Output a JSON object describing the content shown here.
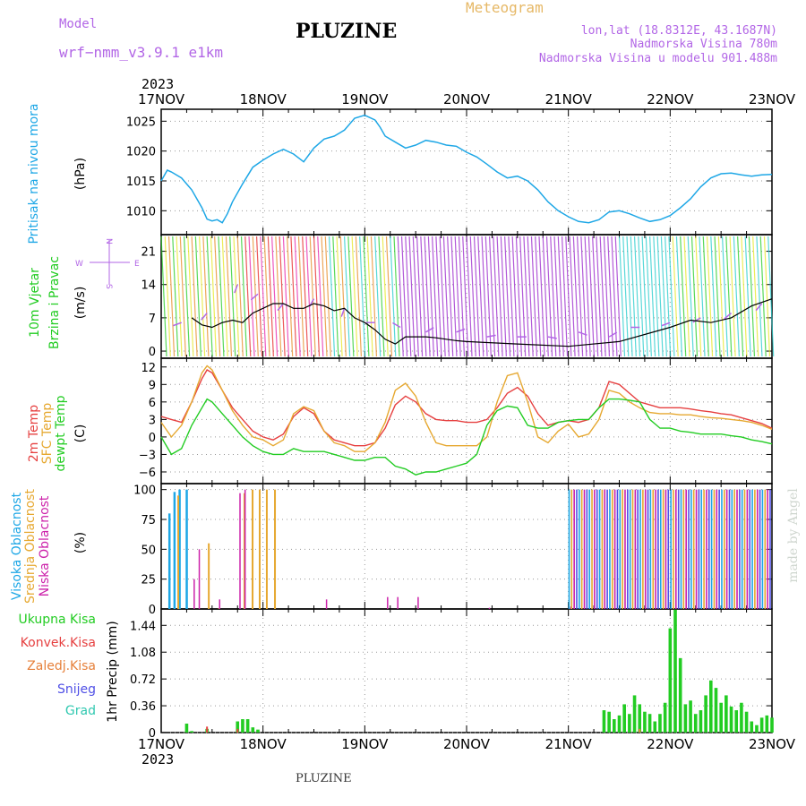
{
  "header": {
    "model_label": "Model",
    "model_name": "wrf−nmm_v3.9.1  e1km",
    "station_title": "PLUZINE",
    "meteogram_label": "Meteogram",
    "lonlat": "lon,lat (18.8312E, 43.1687N)",
    "elevation": "Nadmorska Visina 780m",
    "model_elevation": "Nadmorska Visina u modelu 901.488m",
    "year_top": "2023",
    "year_bottom": "2023",
    "footer_title": "PLUZINE",
    "credit": "made by Angel",
    "colors": {
      "title": "#000000",
      "header_purple": "#b266e6",
      "meteogram": "#e6b866"
    }
  },
  "time_axis": {
    "ticks": [
      "17NOV",
      "18NOV",
      "19NOV",
      "20NOV",
      "21NOV",
      "22NOV",
      "23NOV"
    ]
  },
  "panels": {
    "pressure": {
      "label1": "Pritisak na nivou mora",
      "label2": "(hPa)",
      "color1": "#1ea7e6"
    },
    "wind": {
      "label1": "10m Vjetar",
      "label2": "Brzina i Pravac",
      "label3": "(m/s)",
      "color1": "#22cc22",
      "compass_n": "N",
      "compass_s": "S",
      "compass_w": "W",
      "compass_e": "E",
      "color_compass": "#b266e6"
    },
    "temperature": {
      "label1": "2m Temp",
      "label2": "SFC Temp",
      "label3": "dewpt Temp",
      "label4": "(C)",
      "color1": "#e64040",
      "color2": "#e6a830",
      "color3": "#22cc22"
    },
    "cloud": {
      "label1": "Visoka Oblacnost",
      "label2": "Srednja Oblacnost",
      "label3": "Niska Oblacnost",
      "label4": "(%)",
      "color1": "#1ea7e6",
      "color2": "#e6a830",
      "color3": "#cc22aa"
    },
    "precip": {
      "label1": "Ukupna Kisa",
      "label2": "Konvek.Kisa",
      "label3": "Zaledj.Kisa",
      "label4": "Snijeg",
      "label5": "Grad",
      "label_axis": "1hr Precip (mm)",
      "color1": "#22cc22",
      "color2": "#e64040",
      "color3": "#e6803a",
      "color4": "#5050e6",
      "color5": "#30c8b0"
    }
  },
  "chart_data": [
    {
      "type": "line",
      "name": "pressure",
      "ylim": [
        1006,
        1027
      ],
      "yticks": [
        "1010",
        "1015",
        "1020",
        "1025"
      ],
      "yticks_v": [
        1010,
        1015,
        1020,
        1025
      ],
      "x": [
        0,
        0.06,
        0.1,
        0.2,
        0.3,
        0.4,
        0.45,
        0.5,
        0.55,
        0.6,
        0.65,
        0.7,
        0.8,
        0.9,
        1.0,
        1.1,
        1.2,
        1.3,
        1.4,
        1.5,
        1.6,
        1.7,
        1.8,
        1.9,
        2.0,
        2.1,
        2.15,
        2.2,
        2.3,
        2.4,
        2.5,
        2.6,
        2.7,
        2.8,
        2.9,
        3.0,
        3.1,
        3.2,
        3.3,
        3.4,
        3.5,
        3.6,
        3.7,
        3.8,
        3.9,
        4.0,
        4.1,
        4.2,
        4.3,
        4.4,
        4.5,
        4.6,
        4.7,
        4.8,
        4.9,
        5.0,
        5.1,
        5.2,
        5.3,
        5.4,
        5.5,
        5.6,
        5.7,
        5.8,
        5.9,
        6.0
      ],
      "series": [
        {
          "values": [
            1015,
            1016.8,
            1016.5,
            1015.5,
            1013.5,
            1010.5,
            1008.6,
            1008.3,
            1008.5,
            1008.0,
            1009.5,
            1011.5,
            1014.5,
            1017.3,
            1018.5,
            1019.5,
            1020.3,
            1019.5,
            1018.2,
            1020.5,
            1022.0,
            1022.5,
            1023.5,
            1025.5,
            1026.0,
            1025.2,
            1024.0,
            1022.5,
            1021.5,
            1020.5,
            1021.0,
            1021.8,
            1021.5,
            1021.0,
            1020.8,
            1019.8,
            1019.0,
            1017.8,
            1016.5,
            1015.5,
            1015.8,
            1015.0,
            1013.5,
            1011.5,
            1010.0,
            1009.0,
            1008.2,
            1008.0,
            1008.5,
            1009.8,
            1010.0,
            1009.5,
            1008.8,
            1008.2,
            1008.5,
            1009.2,
            1010.5,
            1012.0,
            1014.0,
            1015.5,
            1016.2,
            1016.3,
            1016.0,
            1015.8,
            1016.0,
            1016.1
          ]
        }
      ]
    },
    {
      "type": "line",
      "name": "wind speed",
      "ylim": [
        -1.5,
        24.5
      ],
      "yticks": [
        "0",
        "7",
        "14",
        "21"
      ],
      "yticks_v": [
        0,
        7,
        14,
        21
      ],
      "x": [
        0.3,
        0.4,
        0.5,
        0.6,
        0.7,
        0.8,
        0.9,
        1.0,
        1.1,
        1.2,
        1.3,
        1.4,
        1.5,
        1.6,
        1.7,
        1.8,
        1.9,
        2.0,
        2.1,
        2.2,
        2.3,
        2.4,
        2.5,
        2.6,
        2.7,
        2.8,
        2.9,
        3.0,
        3.5,
        4.0,
        4.5,
        5.0,
        5.2,
        5.4,
        5.6,
        5.8,
        6.0
      ],
      "series": [
        {
          "values": [
            7,
            5.5,
            5,
            6,
            6.5,
            6,
            8,
            9,
            10,
            10,
            9,
            9,
            10,
            9.5,
            8.5,
            9,
            7,
            6,
            4.5,
            2.5,
            1.5,
            3,
            3,
            3,
            2.8,
            2.5,
            2.2,
            2,
            1.5,
            1,
            2,
            5,
            6.5,
            6,
            7,
            9.5,
            11
          ]
        }
      ],
      "arrows": [
        {
          "t": 0.2,
          "s": 6,
          "d": 250
        },
        {
          "t": 0.45,
          "s": 8,
          "d": 220
        },
        {
          "t": 0.75,
          "s": 14,
          "d": 200
        },
        {
          "t": 0.95,
          "s": 12,
          "d": 230
        },
        {
          "t": 1.2,
          "s": 10,
          "d": 220
        },
        {
          "t": 1.5,
          "s": 11,
          "d": 210
        },
        {
          "t": 1.8,
          "s": 9,
          "d": 200
        },
        {
          "t": 2.1,
          "s": 6,
          "d": 270
        },
        {
          "t": 2.35,
          "s": 5,
          "d": 300
        },
        {
          "t": 2.6,
          "s": 4,
          "d": 60
        },
        {
          "t": 2.9,
          "s": 4,
          "d": 70
        },
        {
          "t": 3.2,
          "s": 3,
          "d": 80
        },
        {
          "t": 3.5,
          "s": 3,
          "d": 90
        },
        {
          "t": 3.8,
          "s": 3,
          "d": 100
        },
        {
          "t": 4.1,
          "s": 4,
          "d": 110
        },
        {
          "t": 4.4,
          "s": 3,
          "d": 60
        },
        {
          "t": 4.7,
          "s": 5,
          "d": 270
        },
        {
          "t": 5.0,
          "s": 6,
          "d": 250
        },
        {
          "t": 5.3,
          "s": 7,
          "d": 240
        },
        {
          "t": 5.6,
          "s": 8,
          "d": 230
        },
        {
          "t": 5.9,
          "s": 10,
          "d": 220
        }
      ]
    },
    {
      "type": "line",
      "name": "temperature",
      "ylim": [
        -8,
        13.5
      ],
      "yticks": [
        "−6",
        "−3",
        "0",
        "3",
        "6",
        "9",
        "12"
      ],
      "yticks_v": [
        -6,
        -3,
        0,
        3,
        6,
        9,
        12
      ],
      "x": [
        0,
        0.1,
        0.2,
        0.3,
        0.4,
        0.45,
        0.5,
        0.6,
        0.7,
        0.8,
        0.9,
        1.0,
        1.1,
        1.2,
        1.3,
        1.4,
        1.5,
        1.6,
        1.7,
        1.8,
        1.9,
        2.0,
        2.1,
        2.2,
        2.3,
        2.4,
        2.5,
        2.6,
        2.7,
        2.8,
        2.9,
        3.0,
        3.1,
        3.2,
        3.3,
        3.4,
        3.5,
        3.6,
        3.7,
        3.8,
        3.9,
        4.0,
        4.1,
        4.2,
        4.3,
        4.4,
        4.5,
        4.6,
        4.7,
        4.8,
        4.9,
        5.0,
        5.1,
        5.2,
        5.3,
        5.4,
        5.5,
        5.6,
        5.7,
        5.8,
        5.9,
        6.0
      ],
      "series": [
        {
          "name": "2m",
          "values": [
            3.5,
            3,
            2.5,
            6,
            10,
            11.5,
            11,
            8,
            5,
            3,
            1,
            0,
            -0.5,
            0.5,
            3.5,
            5,
            4,
            1,
            -0.5,
            -1,
            -1.5,
            -1.5,
            -1,
            1.5,
            5.5,
            7,
            6,
            4,
            3,
            2.8,
            2.8,
            2.5,
            2.5,
            3,
            5,
            7.5,
            8.5,
            7,
            4,
            2,
            2.5,
            2.8,
            2.5,
            3,
            5,
            9.5,
            9,
            7.5,
            6,
            5.5,
            5,
            5,
            5,
            4.8,
            4.5,
            4.3,
            4,
            3.8,
            3.3,
            2.8,
            2.3,
            1.5
          ]
        },
        {
          "name": "SFC",
          "values": [
            2.5,
            0,
            2,
            6,
            11,
            12.2,
            11.5,
            8,
            4.5,
            2,
            0,
            -0.5,
            -1.5,
            -0.5,
            4,
            5.2,
            4.5,
            1,
            -1,
            -1.5,
            -2.5,
            -2.5,
            -1,
            2.5,
            8,
            9.2,
            7,
            2.5,
            -1,
            -1.5,
            -1.5,
            -1.5,
            -1.5,
            0,
            6,
            10.5,
            11,
            6,
            0,
            -1,
            1,
            2.2,
            0,
            0.5,
            3,
            8,
            7.5,
            6,
            5,
            4.2,
            4,
            4,
            3.8,
            3.8,
            3.5,
            3.3,
            3.2,
            3,
            2.8,
            2.5,
            2,
            1.3
          ]
        },
        {
          "name": "dewpt",
          "values": [
            0,
            -3,
            -2,
            2,
            5,
            6.5,
            6,
            4,
            2,
            0,
            -1.5,
            -2.5,
            -3,
            -3,
            -2,
            -2.5,
            -2.5,
            -2.5,
            -3,
            -3.5,
            -4,
            -4,
            -3.5,
            -3.5,
            -5,
            -5.5,
            -6.5,
            -6,
            -6,
            -5.5,
            -5,
            -4.5,
            -3,
            2,
            4.5,
            5.3,
            5,
            2,
            1.5,
            1.5,
            2.5,
            2.8,
            3,
            3,
            5,
            6.5,
            6.5,
            6.3,
            6,
            3,
            1.5,
            1.5,
            1,
            0.8,
            0.5,
            0.5,
            0.5,
            0.2,
            0,
            -0.5,
            -0.8,
            -1.2
          ]
        }
      ]
    },
    {
      "type": "bar",
      "name": "cloud cover",
      "ylim": [
        0,
        105
      ],
      "yticks": [
        "0",
        "25",
        "50",
        "75",
        "100"
      ],
      "yticks_v": [
        0,
        25,
        50,
        75,
        100
      ],
      "high": [
        [
          0.07,
          80
        ],
        [
          0.12,
          98
        ],
        [
          0.17,
          100
        ],
        [
          0.24,
          100
        ]
      ],
      "mid": [
        [
          0.15,
          95
        ],
        [
          0.45,
          55
        ],
        [
          0.55,
          0.5
        ],
        [
          0.8,
          97
        ],
        [
          0.88,
          100
        ],
        [
          0.95,
          100
        ],
        [
          1.02,
          100
        ],
        [
          1.1,
          100
        ]
      ],
      "low": [
        [
          0.3,
          25
        ],
        [
          0.35,
          50
        ],
        [
          0.55,
          8
        ],
        [
          0.75,
          97
        ],
        [
          0.8,
          100
        ],
        [
          1.6,
          8
        ],
        [
          2.2,
          10
        ],
        [
          2.3,
          10
        ],
        [
          2.5,
          10
        ],
        [
          3.2,
          1
        ],
        [
          4.0,
          2
        ]
      ],
      "dense_start": 4.0,
      "dense_end": 6.0,
      "dense_value": 100
    },
    {
      "type": "bar",
      "name": "1hr precip",
      "ylim": [
        0,
        1.66
      ],
      "yticks": [
        "0",
        "0.36",
        "0.72",
        "1.08",
        "1.44"
      ],
      "yticks_v": [
        0,
        0.36,
        0.72,
        1.08,
        1.44
      ],
      "total": [
        [
          0.25,
          0.12
        ],
        [
          0.3,
          0.02
        ],
        [
          0.45,
          0.05
        ],
        [
          0.75,
          0.15
        ],
        [
          0.8,
          0.18
        ],
        [
          0.85,
          0.18
        ],
        [
          0.9,
          0.07
        ],
        [
          0.95,
          0.04
        ],
        [
          4.35,
          0.3
        ],
        [
          4.4,
          0.28
        ],
        [
          4.45,
          0.18
        ],
        [
          4.5,
          0.23
        ],
        [
          4.55,
          0.38
        ],
        [
          4.6,
          0.25
        ],
        [
          4.65,
          0.5
        ],
        [
          4.7,
          0.38
        ],
        [
          4.75,
          0.28
        ],
        [
          4.8,
          0.25
        ],
        [
          4.85,
          0.15
        ],
        [
          4.9,
          0.25
        ],
        [
          4.95,
          0.4
        ],
        [
          5.0,
          1.4
        ],
        [
          5.05,
          1.65
        ],
        [
          5.1,
          1.0
        ],
        [
          5.15,
          0.38
        ],
        [
          5.2,
          0.43
        ],
        [
          5.25,
          0.25
        ],
        [
          5.3,
          0.3
        ],
        [
          5.35,
          0.5
        ],
        [
          5.4,
          0.7
        ],
        [
          5.45,
          0.6
        ],
        [
          5.5,
          0.4
        ],
        [
          5.55,
          0.5
        ],
        [
          5.6,
          0.35
        ],
        [
          5.65,
          0.3
        ],
        [
          5.7,
          0.4
        ],
        [
          5.75,
          0.28
        ],
        [
          5.8,
          0.15
        ],
        [
          5.85,
          0.1
        ],
        [
          5.9,
          0.2
        ],
        [
          5.95,
          0.23
        ],
        [
          6.0,
          0.2
        ]
      ],
      "convective": [
        [
          0.45,
          0.08
        ],
        [
          0.75,
          0.05
        ]
      ],
      "freezing": [
        [
          4.7,
          0.05
        ]
      ]
    }
  ]
}
